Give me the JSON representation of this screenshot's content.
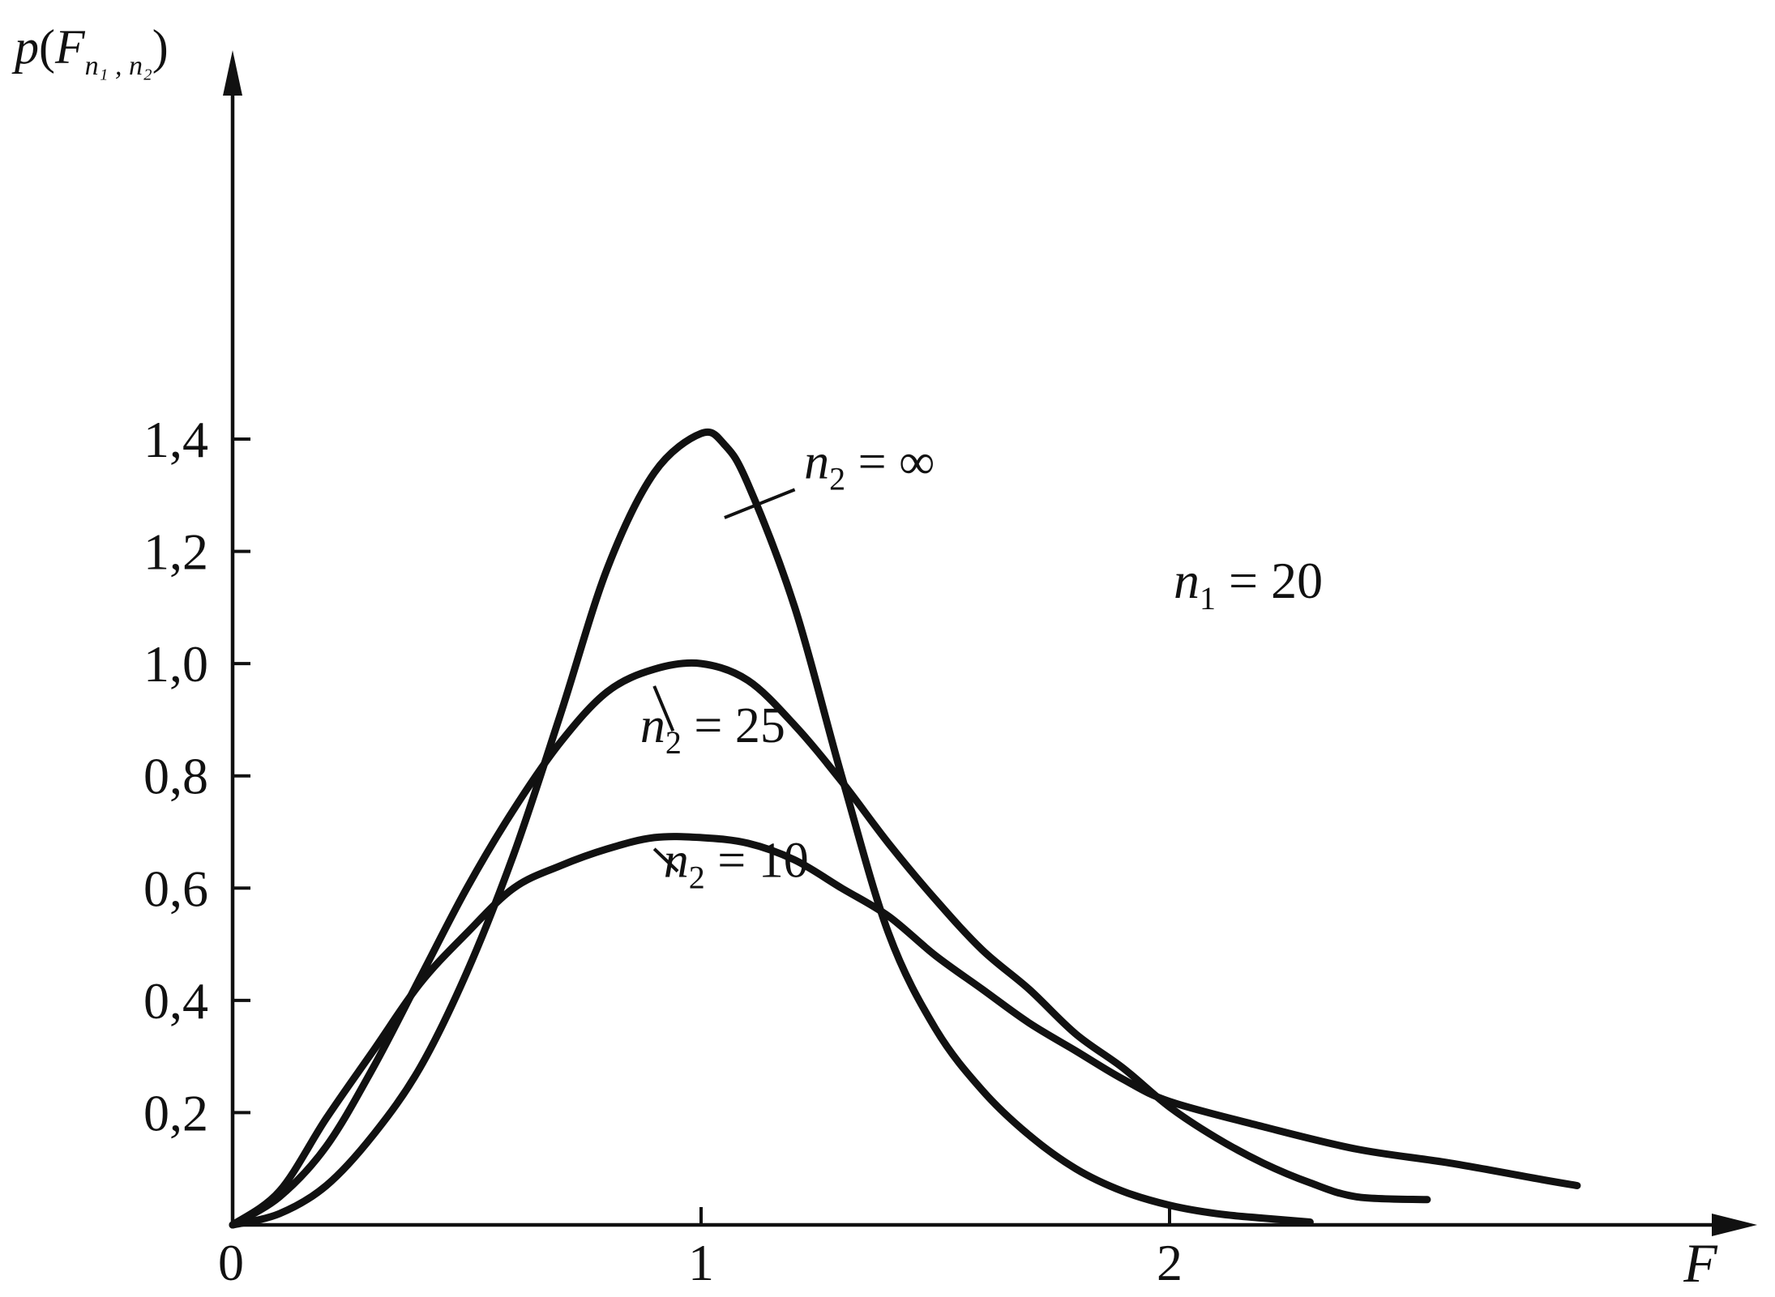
{
  "chart_data": {
    "type": "line",
    "title": "",
    "xlabel": "F",
    "ylabel_main": "p",
    "ylabel_arg": "F",
    "ylabel_sub": "n₁ , n₂",
    "xlim": [
      0,
      3.2
    ],
    "ylim": [
      0,
      1.4
    ],
    "x_ticks": [
      {
        "value": 0,
        "label": "0"
      },
      {
        "value": 1,
        "label": "1"
      },
      {
        "value": 2,
        "label": "2"
      }
    ],
    "y_ticks": [
      {
        "value": 0.2,
        "label": "0,2"
      },
      {
        "value": 0.4,
        "label": "0,4"
      },
      {
        "value": 0.6,
        "label": "0,6"
      },
      {
        "value": 0.8,
        "label": "0,8"
      },
      {
        "value": 1.0,
        "label": "1,0"
      },
      {
        "value": 1.2,
        "label": "1,2"
      },
      {
        "value": 1.4,
        "label": "1,4"
      }
    ],
    "grid": false,
    "legend": "none",
    "annotations": {
      "n1": {
        "var": "n",
        "sub": "1",
        "rest": " = 20"
      }
    },
    "series": [
      {
        "name": "n₂ = ∞",
        "label_var": "n",
        "label_sub": "2",
        "label_rest": " = ∞",
        "label_at": [
          1.22,
          1.33
        ],
        "leader_from": [
          1.05,
          1.26
        ],
        "leader_to": [
          1.2,
          1.31
        ],
        "x": [
          0,
          0.1,
          0.2,
          0.3,
          0.4,
          0.5,
          0.6,
          0.7,
          0.8,
          0.9,
          1.0,
          1.05,
          1.1,
          1.2,
          1.3,
          1.4,
          1.5,
          1.6,
          1.7,
          1.8,
          1.9,
          2.0,
          2.1,
          2.2,
          2.3
        ],
        "values": [
          0,
          0.02,
          0.07,
          0.16,
          0.28,
          0.45,
          0.66,
          0.91,
          1.17,
          1.34,
          1.41,
          1.39,
          1.32,
          1.1,
          0.8,
          0.52,
          0.35,
          0.24,
          0.16,
          0.1,
          0.06,
          0.035,
          0.02,
          0.012,
          0.005
        ]
      },
      {
        "name": "n₂ = 25",
        "label_var": "n",
        "label_sub": "2",
        "label_rest": " = 25",
        "label_at": [
          0.87,
          0.86
        ],
        "leader_from": [
          0.9,
          0.96
        ],
        "leader_to": [
          0.94,
          0.88
        ],
        "x": [
          0,
          0.1,
          0.2,
          0.3,
          0.4,
          0.5,
          0.6,
          0.7,
          0.8,
          0.9,
          1.0,
          1.1,
          1.2,
          1.3,
          1.4,
          1.5,
          1.6,
          1.7,
          1.8,
          1.9,
          2.0,
          2.1,
          2.2,
          2.3,
          2.4,
          2.55
        ],
        "values": [
          0,
          0.05,
          0.14,
          0.28,
          0.44,
          0.6,
          0.74,
          0.86,
          0.95,
          0.99,
          1.0,
          0.97,
          0.89,
          0.79,
          0.68,
          0.58,
          0.49,
          0.42,
          0.34,
          0.28,
          0.21,
          0.155,
          0.11,
          0.075,
          0.05,
          0.045
        ]
      },
      {
        "name": "n₂ = 10",
        "label_var": "n",
        "label_sub": "2",
        "label_rest": " = 10",
        "label_at": [
          0.92,
          0.62
        ],
        "leader_from": [
          0.9,
          0.67
        ],
        "leader_to": [
          0.95,
          0.63
        ],
        "x": [
          0,
          0.1,
          0.2,
          0.3,
          0.4,
          0.5,
          0.6,
          0.7,
          0.8,
          0.9,
          1.0,
          1.1,
          1.2,
          1.3,
          1.4,
          1.5,
          1.6,
          1.7,
          1.8,
          1.9,
          2.0,
          2.2,
          2.4,
          2.6,
          2.8,
          2.87
        ],
        "values": [
          0,
          0.06,
          0.19,
          0.31,
          0.43,
          0.52,
          0.6,
          0.64,
          0.67,
          0.69,
          0.69,
          0.68,
          0.65,
          0.6,
          0.55,
          0.48,
          0.42,
          0.36,
          0.31,
          0.26,
          0.22,
          0.175,
          0.135,
          0.11,
          0.08,
          0.07
        ]
      }
    ]
  }
}
